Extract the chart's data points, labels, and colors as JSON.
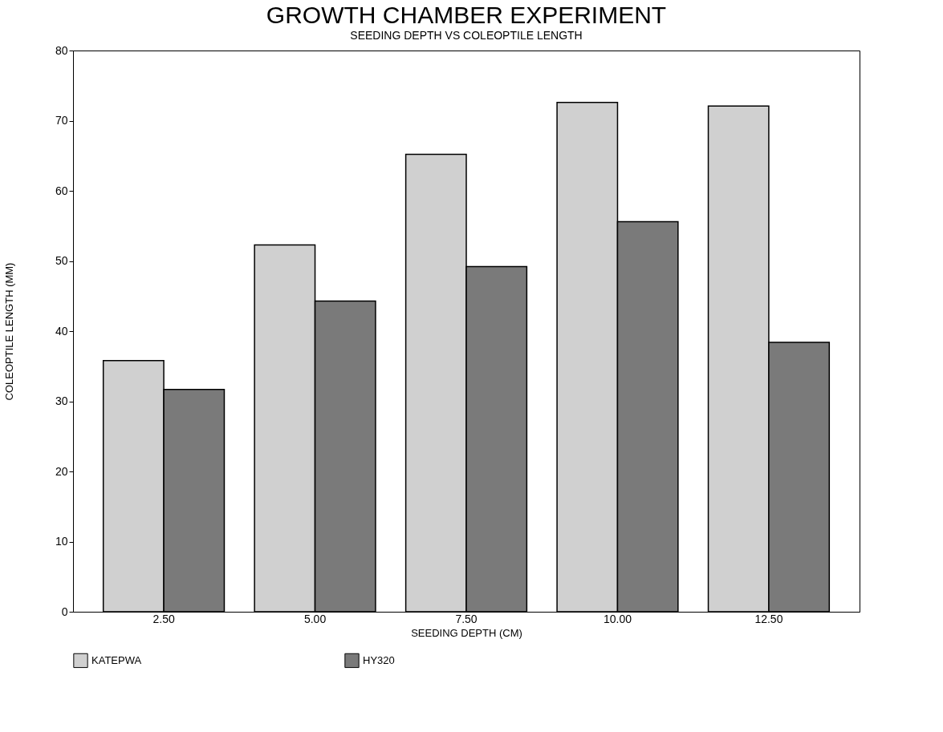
{
  "chart_data": {
    "type": "bar",
    "title": "GROWTH CHAMBER EXPERIMENT",
    "subtitle": "SEEDING DEPTH VS COLEOPTILE LENGTH",
    "xlabel": "SEEDING DEPTH (CM)",
    "ylabel": "COLEOPTILE LENGTH (MM)",
    "categories": [
      "2.50",
      "5.00",
      "7.50",
      "10.00",
      "12.50"
    ],
    "series": [
      {
        "name": "KATEPWA",
        "color": "#d0d0d0",
        "values": [
          35.8,
          52.3,
          65.2,
          72.6,
          72.1
        ]
      },
      {
        "name": "HY320",
        "color": "#7a7a7a",
        "values": [
          31.7,
          44.3,
          49.2,
          55.6,
          38.4
        ]
      }
    ],
    "ylim": [
      0,
      80
    ],
    "yticks": [
      0,
      10,
      20,
      30,
      40,
      50,
      60,
      70,
      80
    ],
    "grid": false,
    "legend": "bottom"
  }
}
